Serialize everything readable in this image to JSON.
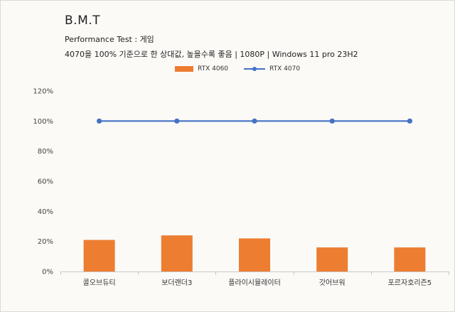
{
  "chart_data": {
    "type": "bar",
    "title": "B.M.T",
    "subtitle_line1": "Performance Test : 게임",
    "subtitle_line2": "4070을 100% 기준으로 한 상대값, 높을수록 좋음 | 1080P | Windows 11 pro 23H2",
    "categories": [
      "콜오브듀티",
      "보더랜더3",
      "플라이시뮬레이터",
      "갓어브워",
      "포르자호리즌5"
    ],
    "series": [
      {
        "name": "RTX 4060",
        "type": "bar",
        "color": "#ed7d31",
        "values": [
          21,
          24,
          22,
          16,
          16
        ]
      },
      {
        "name": "RTX 4070",
        "type": "line",
        "color": "#4472c4",
        "values": [
          100,
          100,
          100,
          100,
          100
        ]
      }
    ],
    "y_ticks": [
      "0%",
      "20%",
      "40%",
      "60%",
      "80%",
      "100%",
      "120%"
    ],
    "ylim": [
      0,
      120
    ],
    "grid": false,
    "legend_position": "top"
  }
}
